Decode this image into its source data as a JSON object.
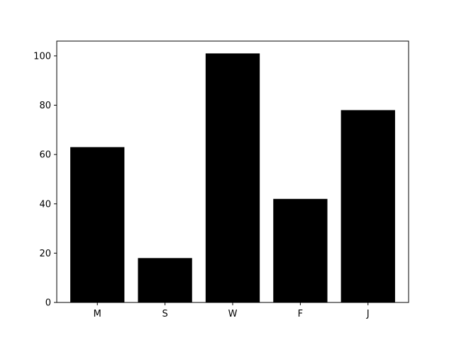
{
  "chart_data": {
    "type": "bar",
    "title": "",
    "xlabel": "",
    "ylabel": "",
    "categories": [
      "M",
      "S",
      "W",
      "F",
      "J"
    ],
    "values": [
      63,
      18,
      101,
      42,
      78
    ],
    "ylim": [
      0,
      106
    ],
    "yticks": [
      0,
      20,
      40,
      60,
      80,
      100
    ],
    "grid": false,
    "bar_color": "#000000",
    "axis_color": "#000000",
    "background": "#ffffff"
  }
}
